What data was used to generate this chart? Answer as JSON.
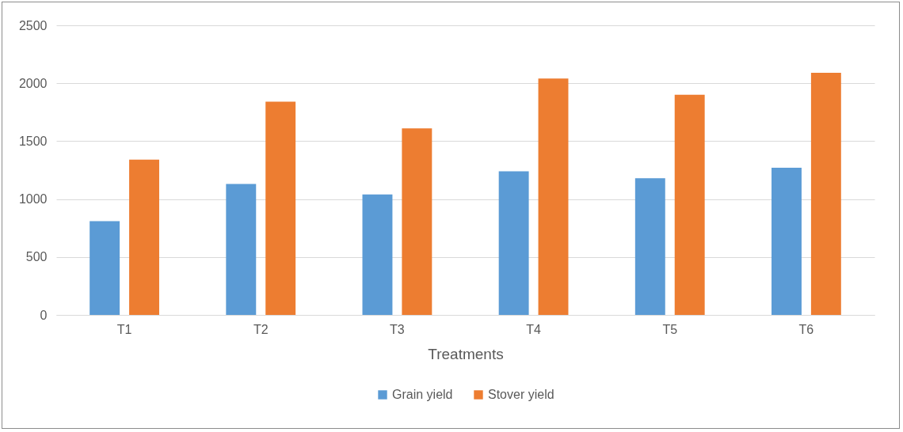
{
  "chart_data": {
    "type": "bar",
    "xlabel": "Treatments",
    "categories": [
      "T1",
      "T2",
      "T3",
      "T4",
      "T5",
      "T6"
    ],
    "series": [
      {
        "name": "Grain yield",
        "color": "#5b9bd5",
        "values": [
          810,
          1130,
          1040,
          1240,
          1180,
          1270
        ]
      },
      {
        "name": "Stover yield",
        "color": "#ed7d31",
        "values": [
          1340,
          1840,
          1610,
          2040,
          1900,
          2090
        ]
      }
    ],
    "ylim": [
      0,
      2500
    ],
    "yticks": [
      0,
      500,
      1000,
      1500,
      2000,
      2500
    ],
    "grid": "y",
    "legend": "bottom"
  }
}
